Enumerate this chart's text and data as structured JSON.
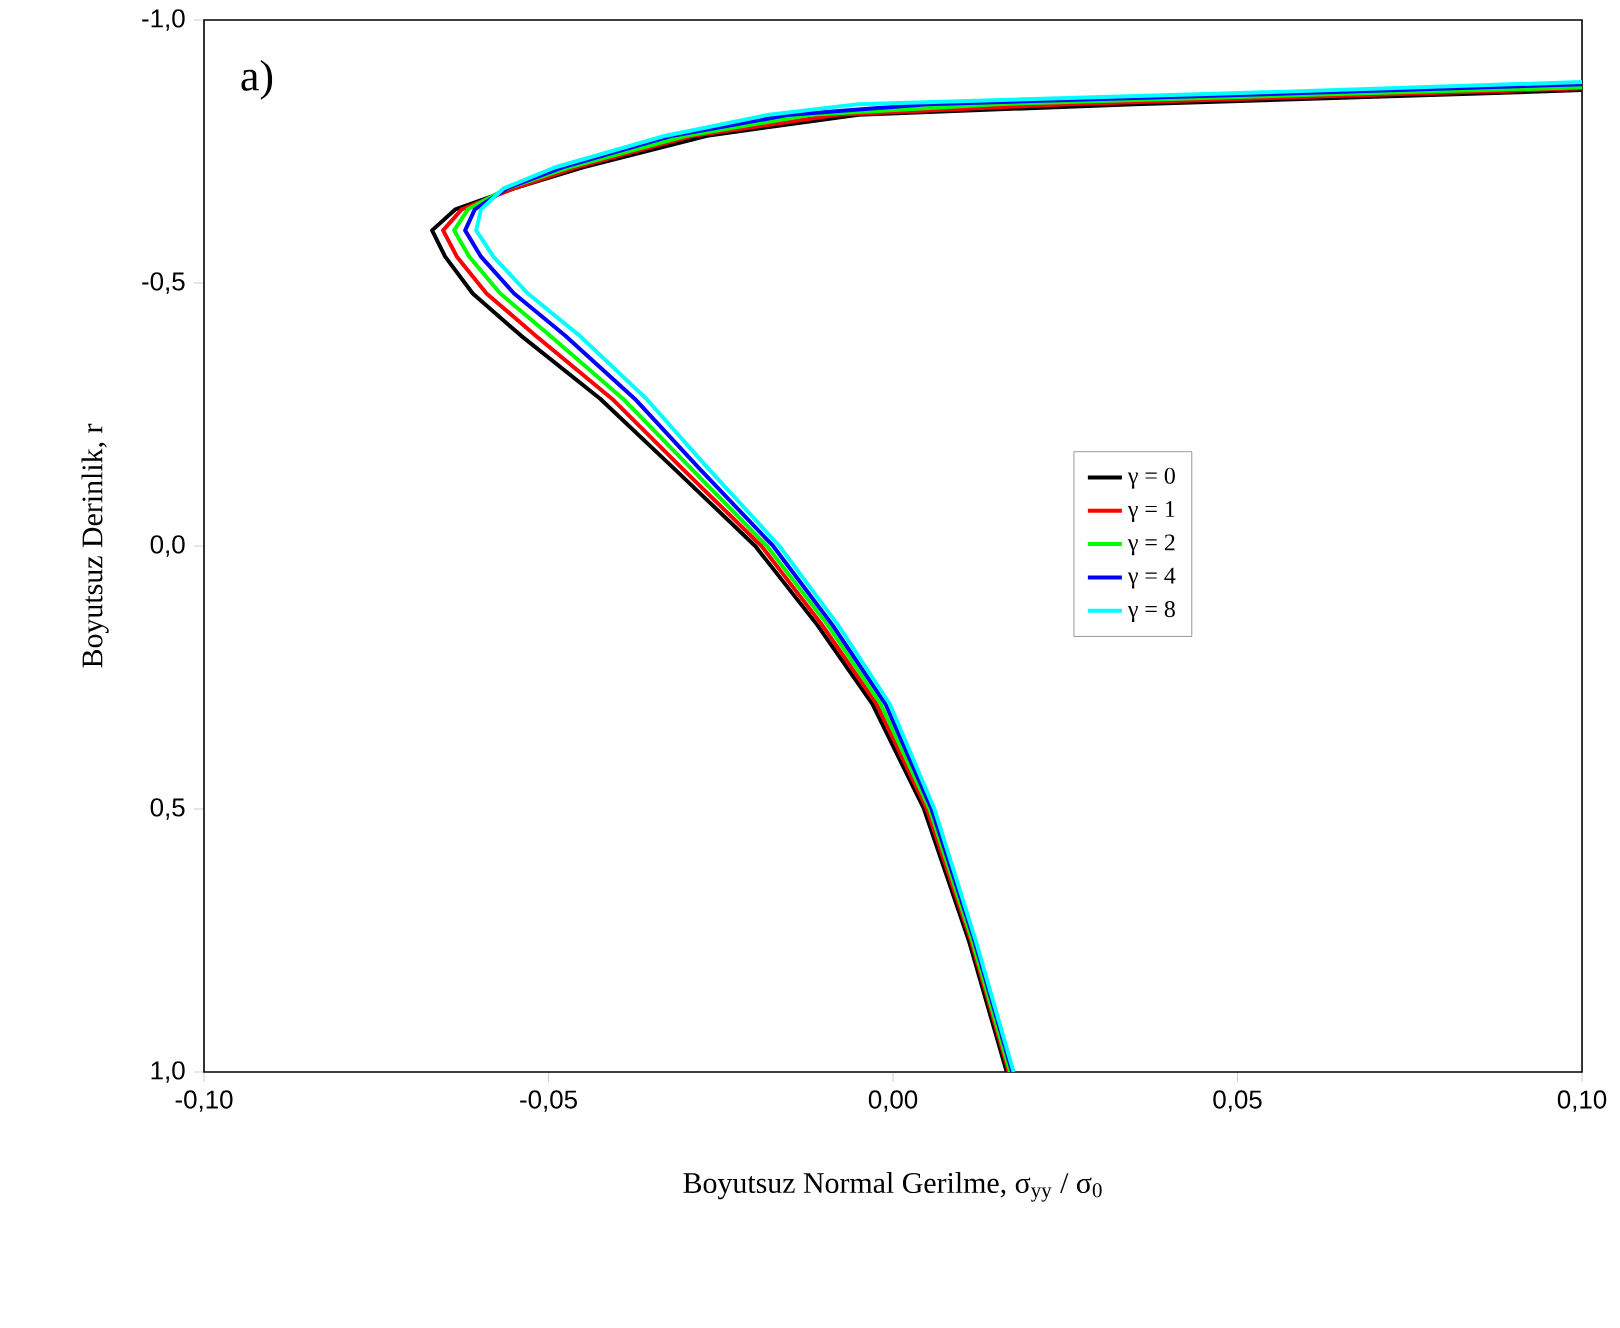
{
  "chart_data": {
    "type": "line",
    "xlabel": "Boyutsuz Normal Gerilme, σ$_{yy}$ / σ$_{0}$",
    "ylabel": "Boyutsuz Derinlik, r",
    "annotations": [
      "a)"
    ],
    "xlim": [
      -0.1,
      0.1
    ],
    "xticks": [
      {
        "value": -0.1,
        "label": "-0,10"
      },
      {
        "value": -0.05,
        "label": "-0,05"
      },
      {
        "value": 0,
        "label": "0,00"
      },
      {
        "value": 0.05,
        "label": "0,05"
      },
      {
        "value": 0.1,
        "label": "0,10"
      }
    ],
    "ylim": [
      1,
      -1
    ],
    "yticks": [
      {
        "value": -1,
        "label": "-1,0"
      },
      {
        "value": -0.5,
        "label": "-0,5"
      },
      {
        "value": 0,
        "label": "0,0"
      },
      {
        "value": 0.5,
        "label": "0,5"
      },
      {
        "value": 1,
        "label": "1,0"
      }
    ],
    "legend": "right",
    "grid": false,
    "marker": "none",
    "line_style": "solid",
    "series": [
      {
        "name": "γ = 0",
        "color": "#000000",
        "x": [
          0.1,
          0.085,
          0.035,
          -0.005,
          -0.027,
          -0.045,
          -0.055,
          -0.0635,
          -0.0669,
          -0.065,
          -0.061,
          -0.054,
          -0.0425,
          -0.032,
          -0.02,
          -0.011,
          -0.003,
          0.0045,
          0.011,
          0.0165
        ],
        "values": [
          -0.867,
          -0.86,
          -0.84,
          -0.82,
          -0.78,
          -0.72,
          -0.68,
          -0.64,
          -0.6,
          -0.55,
          -0.48,
          -0.4,
          -0.28,
          -0.15,
          0,
          0.15,
          0.3,
          0.5,
          0.75,
          1.0
        ]
      },
      {
        "name": "γ = 1",
        "color": "#ff0000",
        "x": [
          0.1,
          0.076,
          0.025,
          -0.008,
          -0.029,
          -0.046,
          -0.055,
          -0.0626,
          -0.0653,
          -0.0633,
          -0.059,
          -0.0519,
          -0.0408,
          -0.0308,
          -0.0191,
          -0.0103,
          -0.0024,
          0.0049,
          0.0113,
          0.0168
        ],
        "values": [
          -0.87,
          -0.86,
          -0.84,
          -0.82,
          -0.78,
          -0.72,
          -0.68,
          -0.64,
          -0.6,
          -0.55,
          -0.48,
          -0.4,
          -0.28,
          -0.15,
          0,
          0.15,
          0.3,
          0.5,
          0.75,
          1.0
        ]
      },
      {
        "name": "γ = 2",
        "color": "#00ff00",
        "x": [
          0.1,
          0.067,
          0.015,
          -0.012,
          -0.03,
          -0.047,
          -0.056,
          -0.0617,
          -0.0637,
          -0.0615,
          -0.057,
          -0.0498,
          -0.0392,
          -0.0295,
          -0.0183,
          -0.0095,
          -0.0018,
          0.0053,
          0.0115,
          0.017
        ],
        "values": [
          -0.872,
          -0.86,
          -0.84,
          -0.82,
          -0.78,
          -0.72,
          -0.68,
          -0.64,
          -0.6,
          -0.55,
          -0.48,
          -0.4,
          -0.28,
          -0.15,
          0,
          0.15,
          0.3,
          0.5,
          0.75,
          1.0
        ]
      },
      {
        "name": "γ = 4",
        "color": "#0000ff",
        "x": [
          0.1,
          0.057,
          0.005,
          -0.015,
          -0.032,
          -0.048,
          -0.056,
          -0.0607,
          -0.0621,
          -0.0598,
          -0.055,
          -0.0476,
          -0.0375,
          -0.0283,
          -0.0174,
          -0.0088,
          -0.0011,
          0.0056,
          0.0118,
          0.0173
        ],
        "values": [
          -0.878,
          -0.86,
          -0.84,
          -0.82,
          -0.78,
          -0.72,
          -0.68,
          -0.64,
          -0.6,
          -0.55,
          -0.48,
          -0.4,
          -0.28,
          -0.15,
          0,
          0.15,
          0.3,
          0.5,
          0.75,
          1.0
        ]
      },
      {
        "name": "γ = 8",
        "color": "#00ffff",
        "x": [
          0.1,
          0.048,
          -0.005,
          -0.018,
          -0.033,
          -0.049,
          -0.0565,
          -0.0598,
          -0.0605,
          -0.058,
          -0.053,
          -0.0455,
          -0.0358,
          -0.027,
          -0.0165,
          -0.008,
          -0.0005,
          0.006,
          0.012,
          0.0175
        ],
        "values": [
          -0.882,
          -0.86,
          -0.84,
          -0.82,
          -0.78,
          -0.72,
          -0.68,
          -0.64,
          -0.6,
          -0.55,
          -0.48,
          -0.4,
          -0.28,
          -0.15,
          0,
          0.15,
          0.3,
          0.5,
          0.75,
          1.0
        ]
      }
    ]
  }
}
